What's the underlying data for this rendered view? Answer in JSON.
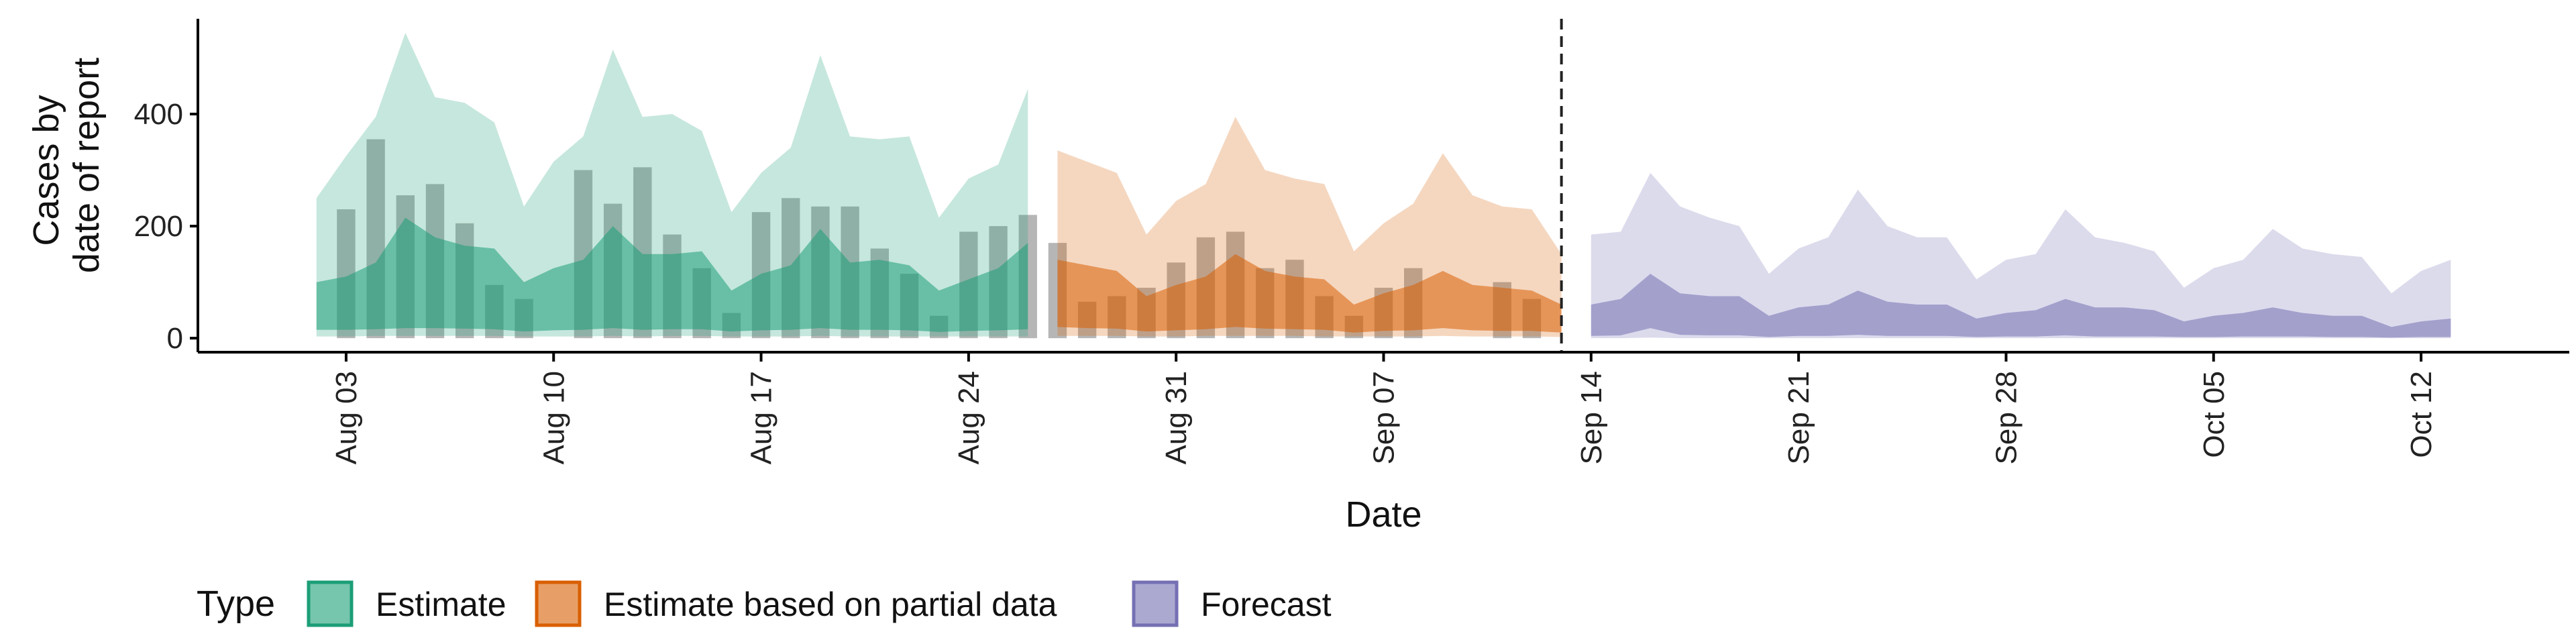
{
  "chart_data": {
    "type": "area",
    "xlabel": "Date",
    "ylabel_lines": [
      "Cases by",
      "date of report"
    ],
    "xlim": [
      "2021-07-29",
      "2021-10-17"
    ],
    "ylim": [
      -25,
      570
    ],
    "y_ticks": [
      0,
      200,
      400
    ],
    "x_ticks": [
      {
        "date": "2021-08-03",
        "label": "Aug 03"
      },
      {
        "date": "2021-08-10",
        "label": "Aug 10"
      },
      {
        "date": "2021-08-17",
        "label": "Aug 17"
      },
      {
        "date": "2021-08-24",
        "label": "Aug 24"
      },
      {
        "date": "2021-08-31",
        "label": "Aug 31"
      },
      {
        "date": "2021-09-07",
        "label": "Sep 07"
      },
      {
        "date": "2021-09-14",
        "label": "Sep 14"
      },
      {
        "date": "2021-09-21",
        "label": "Sep 21"
      },
      {
        "date": "2021-09-28",
        "label": "Sep 28"
      },
      {
        "date": "2021-10-05",
        "label": "Oct 05"
      },
      {
        "date": "2021-10-12",
        "label": "Oct 12"
      }
    ],
    "vline_date": "2021-09-13",
    "bars_color": "#a9a9a9",
    "bars": {
      "start_date": "2021-08-03",
      "values": [
        230,
        355,
        255,
        275,
        205,
        95,
        70,
        0,
        300,
        240,
        305,
        185,
        125,
        45,
        225,
        250,
        235,
        235,
        160,
        115,
        40,
        190,
        200,
        220,
        170,
        65,
        75,
        90,
        135,
        180,
        190,
        125,
        140,
        75,
        40,
        90,
        125,
        0,
        0,
        100,
        70
      ]
    },
    "series": [
      {
        "name": "Estimate",
        "fill": "#1b9e77",
        "start_date": "2021-08-02",
        "outer_high": [
          250,
          325,
          395,
          545,
          430,
          420,
          385,
          235,
          315,
          360,
          515,
          395,
          400,
          370,
          225,
          295,
          340,
          505,
          360,
          355,
          360,
          215,
          285,
          310,
          445
        ],
        "inner_high": [
          100,
          110,
          135,
          215,
          180,
          165,
          160,
          100,
          125,
          140,
          200,
          150,
          150,
          155,
          85,
          115,
          130,
          195,
          135,
          140,
          130,
          85,
          105,
          125,
          170
        ],
        "inner_low": [
          15,
          15,
          16,
          18,
          18,
          17,
          16,
          12,
          14,
          15,
          18,
          15,
          16,
          16,
          12,
          14,
          15,
          18,
          15,
          15,
          14,
          11,
          13,
          14,
          16
        ],
        "outer_low": [
          3,
          3,
          4,
          4,
          4,
          4,
          4,
          3,
          3,
          3,
          4,
          3,
          4,
          4,
          3,
          3,
          3,
          4,
          3,
          3,
          3,
          3,
          3,
          3,
          3
        ]
      },
      {
        "name": "Estimate based on partial data",
        "fill": "#d95f02",
        "start_date": "2021-08-27",
        "outer_high": [
          335,
          315,
          295,
          185,
          245,
          275,
          395,
          300,
          285,
          275,
          155,
          205,
          240,
          330,
          255,
          235,
          230,
          150
        ],
        "inner_high": [
          140,
          130,
          120,
          75,
          95,
          110,
          150,
          120,
          110,
          105,
          60,
          80,
          95,
          120,
          95,
          90,
          85,
          60
        ],
        "inner_low": [
          20,
          18,
          17,
          12,
          14,
          16,
          20,
          17,
          16,
          15,
          10,
          13,
          14,
          18,
          14,
          13,
          13,
          10
        ],
        "outer_low": [
          4,
          4,
          4,
          3,
          3,
          4,
          4,
          4,
          4,
          3,
          3,
          3,
          3,
          4,
          3,
          3,
          3,
          2
        ]
      },
      {
        "name": "Forecast",
        "fill": "#7570b3",
        "start_date": "2021-09-14",
        "outer_high": [
          185,
          190,
          295,
          235,
          215,
          200,
          115,
          160,
          180,
          265,
          200,
          180,
          180,
          105,
          140,
          150,
          230,
          180,
          170,
          155,
          90,
          125,
          140,
          195,
          160,
          150,
          145,
          80,
          120,
          140
        ],
        "inner_high": [
          60,
          70,
          115,
          80,
          75,
          75,
          40,
          55,
          60,
          85,
          65,
          60,
          60,
          35,
          45,
          50,
          70,
          55,
          55,
          50,
          30,
          40,
          45,
          55,
          45,
          40,
          40,
          20,
          30,
          35
        ],
        "inner_low": [
          4,
          5,
          18,
          6,
          5,
          5,
          2,
          4,
          4,
          6,
          4,
          4,
          4,
          2,
          3,
          3,
          5,
          3,
          3,
          3,
          2,
          2,
          3,
          3,
          3,
          2,
          2,
          1,
          2,
          2
        ],
        "outer_low": [
          0,
          0,
          1,
          0,
          0,
          0,
          0,
          0,
          0,
          0,
          0,
          0,
          0,
          0,
          0,
          0,
          0,
          0,
          0,
          0,
          0,
          0,
          0,
          0,
          0,
          0,
          0,
          0,
          0,
          0
        ]
      }
    ],
    "legend": {
      "title": "Type",
      "position": "bottom",
      "items": [
        {
          "label": "Estimate",
          "fill": "#1b9e77"
        },
        {
          "label": "Estimate based on partial data",
          "fill": "#d95f02"
        },
        {
          "label": "Forecast",
          "fill": "#7570b3"
        }
      ]
    }
  }
}
